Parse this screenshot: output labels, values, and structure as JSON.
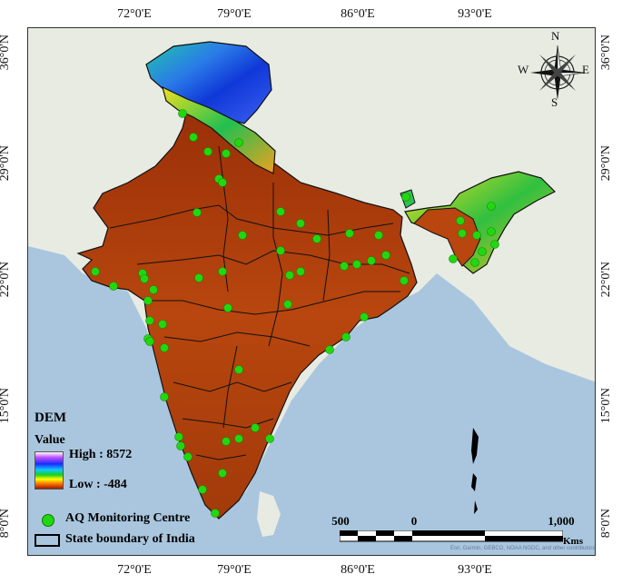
{
  "map": {
    "lon_labels": [
      "72°0'E",
      "79°0'E",
      "86°0'E",
      "93°0'E"
    ],
    "lat_labels": [
      "36°0'N",
      "29°0'N",
      "22°0'N",
      "15°0'N",
      "8°0'N"
    ],
    "basemap_colors": {
      "ocean": "#a9c6de",
      "land": "#e9ece4",
      "dem_low": "#b5400c",
      "dem_high": "#7a1d00"
    },
    "compass": {
      "n": "N",
      "e": "E",
      "s": "S",
      "w": "W"
    },
    "credit": "Esri, Garmin, GEBCO, NOAA NGDC, and other contributors"
  },
  "legend": {
    "title": "DEM",
    "subtitle": "Value",
    "high_label": "High : 8572",
    "low_label": "Low : -484",
    "aq_label": "AQ Monitoring Centre",
    "state_label": "State boundary of India",
    "aq_color": "#21d80f"
  },
  "scale_bar": {
    "labels": [
      "500",
      "0",
      "1,000"
    ],
    "unit": "Kms"
  }
}
